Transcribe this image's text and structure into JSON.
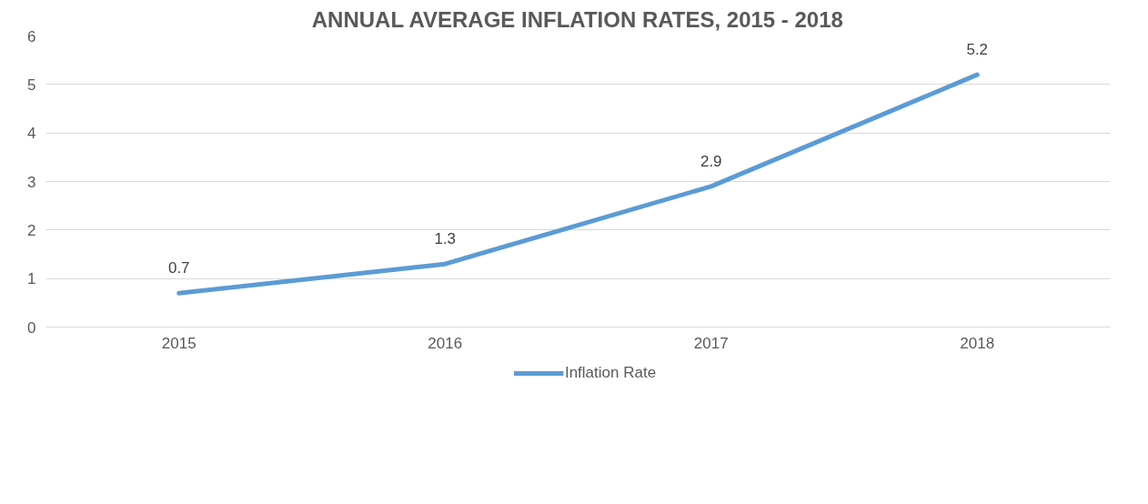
{
  "chart_data": {
    "type": "line",
    "title": "ANNUAL AVERAGE INFLATION RATES, 2015 - 2018",
    "categories": [
      "2015",
      "2016",
      "2017",
      "2018"
    ],
    "series": [
      {
        "name": "Inflation Rate",
        "color": "#5b9bd5",
        "values": [
          0.7,
          1.3,
          2.9,
          5.2
        ]
      }
    ],
    "ylim": [
      0,
      6
    ],
    "yticks": [
      0,
      1,
      2,
      3,
      4,
      5,
      6
    ],
    "grid": "y",
    "legend": "bottom",
    "marker": "none",
    "line_style": "solid",
    "data_labels": true
  }
}
